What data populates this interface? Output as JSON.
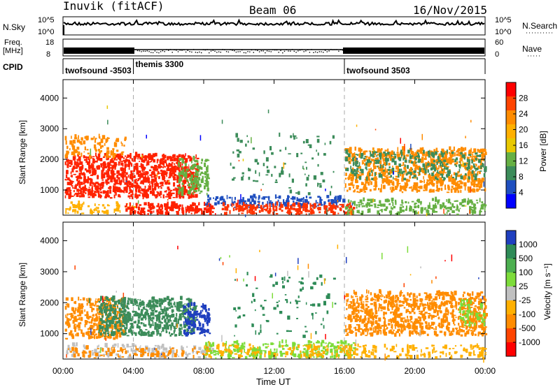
{
  "header": {
    "station": "Inuvik (fitACF)",
    "beam": "Beam 06",
    "date": "16/Nov/2015"
  },
  "top_panels": {
    "nsky_label": "N.Sky",
    "nsky_ticks": [
      "10^5",
      "10^0"
    ],
    "nsearch_label": "N.Search",
    "nsearch_ticks": [
      "10^5",
      "10^0"
    ],
    "freq_label_1": "Freq.",
    "freq_label_2": "[MHz]",
    "freq_ticks": [
      "18",
      "8"
    ],
    "nave_label": "Nave",
    "nave_ticks": [
      "60",
      "0"
    ],
    "cpid_label": "CPID",
    "cpid_segments": [
      {
        "name": "twofsound -3503",
        "start_h": 0,
        "end_h": 4
      },
      {
        "name": "themis 3300",
        "start_h": 4,
        "end_h": 16
      },
      {
        "name": "twofsound 3503",
        "start_h": 16,
        "end_h": 24
      }
    ]
  },
  "x_axis": {
    "title": "Time UT",
    "ticks": [
      "00:00",
      "04:00",
      "08:00",
      "12:00",
      "16:00",
      "20:00",
      "00:00"
    ]
  },
  "chart_data": [
    {
      "type": "heatmap",
      "title": "Power",
      "xlabel": "Time UT",
      "ylabel": "Slant Range [km]",
      "xlim_hours": [
        0,
        24
      ],
      "ylim_km": [
        180,
        4600
      ],
      "yticks": [
        "4000",
        "3000",
        "2000",
        "1000"
      ],
      "colorbar_label": "Power [dB]",
      "colorbar_ticks": [
        "28",
        "24",
        "20",
        "16",
        "12",
        "8",
        "4"
      ],
      "colorbar_colors": [
        "#ff0000",
        "#ff4400",
        "#ff8c00",
        "#ffb000",
        "#e8c800",
        "#66b044",
        "#3c8c5a",
        "#1f4fbf",
        "#0000ff"
      ],
      "blobs": [
        {
          "t0": 0.1,
          "t1": 7.6,
          "r0": 700,
          "r1": 2100,
          "color": "#ff2200",
          "density": 0.8
        },
        {
          "t0": 0.1,
          "t1": 3.5,
          "r0": 2000,
          "r1": 2700,
          "color": "#ff8c00",
          "density": 0.35
        },
        {
          "t0": 6.5,
          "t1": 8.3,
          "r0": 800,
          "r1": 2000,
          "color": "#66b044",
          "density": 0.5
        },
        {
          "t0": 0.1,
          "t1": 4.0,
          "r0": 200,
          "r1": 550,
          "color": "#ffb000",
          "density": 0.4
        },
        {
          "t0": 3.5,
          "t1": 8.5,
          "r0": 180,
          "r1": 500,
          "color": "#ff2200",
          "density": 0.85
        },
        {
          "t0": 8.0,
          "t1": 16.0,
          "r0": 400,
          "r1": 750,
          "color": "#1f4fbf",
          "density": 0.5
        },
        {
          "t0": 9.0,
          "t1": 16.5,
          "r0": 180,
          "r1": 500,
          "color": "#ff3300",
          "density": 0.75
        },
        {
          "t0": 16.0,
          "t1": 24.0,
          "r0": 180,
          "r1": 650,
          "color": "#66b044",
          "density": 0.45
        },
        {
          "t0": 16.0,
          "t1": 24.0,
          "r0": 900,
          "r1": 2300,
          "color": "#ff8c00",
          "density": 0.6
        },
        {
          "t0": 16.0,
          "t1": 24.0,
          "r0": 1300,
          "r1": 2200,
          "color": "#3c8c5a",
          "density": 0.3
        },
        {
          "t0": 9.5,
          "t1": 15.5,
          "r0": 800,
          "r1": 2900,
          "color": "#3c8c5a",
          "density": 0.06
        }
      ]
    },
    {
      "type": "heatmap",
      "title": "Velocity",
      "xlabel": "Time UT",
      "ylabel": "Slant Range [km]",
      "xlim_hours": [
        0,
        24
      ],
      "ylim_km": [
        180,
        4600
      ],
      "yticks": [
        "4000",
        "3000",
        "2000",
        "1000"
      ],
      "colorbar_label": "Velocity [m s⁻¹]",
      "colorbar_ticks": [
        "1000",
        "500",
        "100",
        "25",
        "-25",
        "-100",
        "-500",
        "-1000"
      ],
      "colorbar_colors": [
        "#1f3fbf",
        "#2e8b57",
        "#4caf50",
        "#7ddc3a",
        "#c0c0c0",
        "#ffb000",
        "#ff8c00",
        "#ff4400",
        "#ff0000"
      ],
      "blobs": [
        {
          "t0": 0.1,
          "t1": 3.5,
          "r0": 800,
          "r1": 2100,
          "color": "#ff8c00",
          "density": 0.6
        },
        {
          "t0": 2.0,
          "t1": 7.5,
          "r0": 900,
          "r1": 2100,
          "color": "#3c8c5a",
          "density": 0.75
        },
        {
          "t0": 6.8,
          "t1": 8.3,
          "r0": 900,
          "r1": 1900,
          "color": "#1f3fbf",
          "density": 0.6
        },
        {
          "t0": 0.1,
          "t1": 8.5,
          "r0": 180,
          "r1": 600,
          "color": "#c0c0c0",
          "density": 0.35
        },
        {
          "t0": 0.1,
          "t1": 8.5,
          "r0": 200,
          "r1": 500,
          "color": "#ff8c00",
          "density": 0.3
        },
        {
          "t0": 8.0,
          "t1": 16.5,
          "r0": 180,
          "r1": 700,
          "color": "#7ddc3a",
          "density": 0.45
        },
        {
          "t0": 8.0,
          "t1": 16.5,
          "r0": 200,
          "r1": 600,
          "color": "#ffb000",
          "density": 0.3
        },
        {
          "t0": 16.0,
          "t1": 24.0,
          "r0": 900,
          "r1": 2300,
          "color": "#ff8c00",
          "density": 0.65
        },
        {
          "t0": 16.0,
          "t1": 24.0,
          "r0": 180,
          "r1": 600,
          "color": "#ffb000",
          "density": 0.35
        },
        {
          "t0": 22.5,
          "t1": 24.0,
          "r0": 1200,
          "r1": 2100,
          "color": "#7ddc3a",
          "density": 0.3
        },
        {
          "t0": 9.5,
          "t1": 15.5,
          "r0": 800,
          "r1": 2900,
          "color": "#2e8b57",
          "density": 0.06
        }
      ]
    }
  ]
}
